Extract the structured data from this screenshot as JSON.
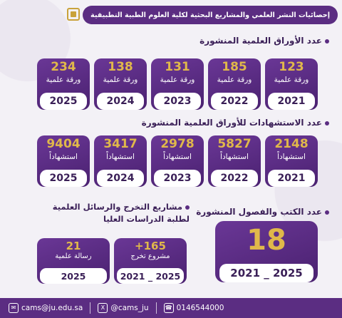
{
  "header": {
    "title": "إحصائيات النشر العلمي والمشاريع البحثية لكلية العلوم الطبية التطبيقية"
  },
  "sections": {
    "papers": {
      "heading": "عدد الأوراق العلمية المنشورة",
      "unit_label": "ورقة علمية",
      "items": [
        {
          "value": "123",
          "year": "2021"
        },
        {
          "value": "185",
          "year": "2022"
        },
        {
          "value": "131",
          "year": "2023"
        },
        {
          "value": "138",
          "year": "2024"
        },
        {
          "value": "234",
          "year": "2025"
        }
      ]
    },
    "citations": {
      "heading": "عدد الاستشهادات للأوراق العلمية المنشورة",
      "unit_label": "استشهاداً",
      "items": [
        {
          "value": "2148",
          "year": "2021"
        },
        {
          "value": "5827",
          "year": "2022"
        },
        {
          "value": "2978",
          "year": "2023"
        },
        {
          "value": "3417",
          "year": "2024"
        },
        {
          "value": "9404",
          "year": "2025"
        }
      ]
    },
    "books": {
      "heading": "عدد الكتب والفصول المنشورة",
      "value": "18",
      "year": "2021 _ 2025"
    },
    "graduation": {
      "heading_line1": "مشاريع التخرج والرسائل العلمية",
      "heading_line2": "لطلبة الدراسات العليا",
      "projects": {
        "value": "+165",
        "label": "مشروع تخرج",
        "year": "2021 _ 2025"
      },
      "theses": {
        "value": "21",
        "label": "رسالة علمية",
        "year": "2025"
      }
    }
  },
  "footer": {
    "email": "cams@ju.edu.sa",
    "x_handle": "@cams_ju",
    "phone": "0146544000"
  }
}
